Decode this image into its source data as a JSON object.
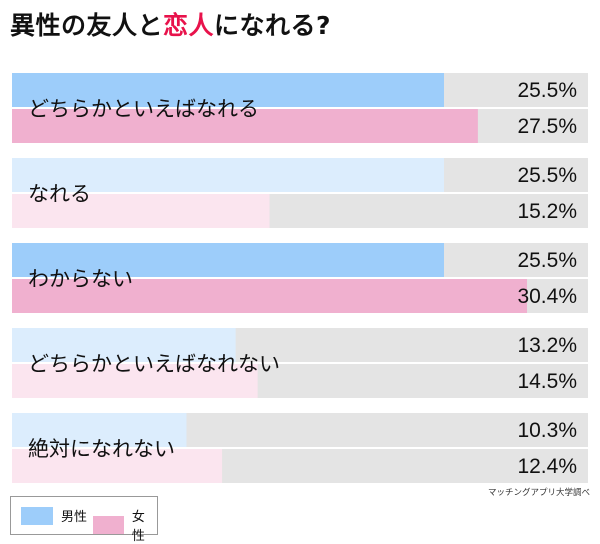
{
  "title": {
    "part1": "異性の友人と",
    "accent": "恋人",
    "part2": "になれる?"
  },
  "colors": {
    "male_strong": "#9dcdfa",
    "male_light": "#dcedfd",
    "female_strong": "#f0b0cf",
    "female_light": "#fbe5ef",
    "background_bar": "#e4e4e4",
    "accent_text": "#e8124b"
  },
  "chart_data": {
    "type": "bar",
    "orientation": "horizontal",
    "title": "異性の友人と恋人になれる?",
    "categories": [
      "どちらかといえばなれる",
      "なれる",
      "わからない",
      "どちらかといえばなれない",
      "絶対になれない"
    ],
    "series": [
      {
        "name": "男性",
        "values": [
          25.5,
          25.5,
          25.5,
          13.2,
          10.3
        ]
      },
      {
        "name": "女性",
        "values": [
          27.5,
          15.2,
          30.4,
          14.5,
          12.4
        ]
      }
    ],
    "value_labels": [
      [
        "25.5%",
        "27.5%"
      ],
      [
        "25.5%",
        "15.2%"
      ],
      [
        "25.5%",
        "30.4%"
      ],
      [
        "13.2%",
        "14.5%"
      ],
      [
        "10.3%",
        "12.4%"
      ]
    ],
    "highlighted": [
      true,
      false,
      true,
      false,
      false
    ],
    "xlim": [
      0,
      34
    ],
    "unit": "%"
  },
  "legend": {
    "male": "男性",
    "female": "女性"
  },
  "source": "マッチングアプリ大学調べ"
}
